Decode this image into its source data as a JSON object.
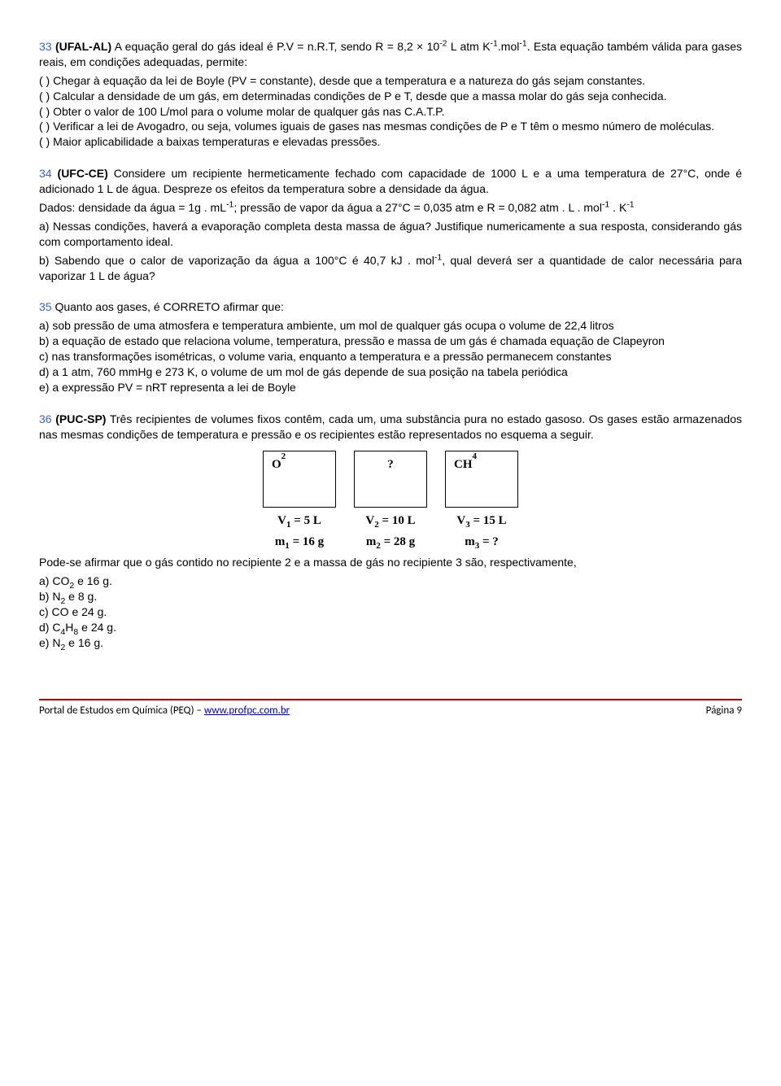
{
  "q33": {
    "num": "33",
    "source": "(UFAL-AL)",
    "stem": "A equação geral do gás ideal é P.V = n.R.T, sendo R = 8,2 × 10⁻² L atm K⁻¹.mol⁻¹. Esta equação também válida para gases reais, em condições adequadas, permite:",
    "opts": [
      "(      ) Chegar à equação da lei de Boyle (PV = constante), desde que a temperatura e a natureza do gás sejam constantes.",
      "(      ) Calcular a densidade de um gás, em determinadas condições de P e T, desde que a massa molar do gás seja conhecida.",
      "(      ) Obter o valor de 100 L/mol para o volume molar de qualquer gás nas C.A.T.P.",
      "(      ) Verificar a lei de Avogadro, ou seja, volumes iguais de gases nas mesmas condições de P e T têm o mesmo número de moléculas.",
      "(      ) Maior aplicabilidade a baixas temperaturas e elevadas pressões."
    ]
  },
  "q34": {
    "num": "34",
    "source": "(UFC-CE)",
    "p1": "Considere um recipiente hermeticamente fechado com capacidade de 1000 L e a uma temperatura de 27°C, onde é adicionado 1 L de água. Despreze os efeitos da temperatura sobre a densidade da água.",
    "p2": "Dados: densidade da água = 1g . mL⁻¹; pressão de vapor da água a 27°C = 0,035 atm e R = 0,082 atm . L . mol⁻¹ . K⁻¹",
    "a": "a) Nessas condições, haverá a evaporação completa desta massa de água? Justifique numericamente a sua resposta, considerando gás com comportamento ideal.",
    "b": "b) Sabendo que o calor de vaporização da água a 100°C é 40,7 kJ . mol⁻¹, qual deverá ser a quantidade de calor necessária para vaporizar 1 L de água?"
  },
  "q35": {
    "num": "35",
    "stem": "Quanto aos gases, é CORRETO afirmar que:",
    "opts": [
      "a) sob pressão de uma atmosfera e temperatura ambiente, um mol de qualquer gás ocupa o volume de 22,4 litros",
      "b) a equação de estado que relaciona volume, temperatura, pressão e massa de um gás é chamada equação de Clapeyron",
      "c) nas transformações isométricas, o volume varia, enquanto a temperatura e a pressão permanecem constantes",
      "d) a 1 atm, 760 mmHg e 273 K, o volume de um mol de gás depende de sua posição na tabela periódica",
      "e) a expressão PV = nRT representa a lei de Boyle"
    ]
  },
  "q36": {
    "num": "36",
    "source": "(PUC-SP)",
    "stem": "Três recipientes de volumes fixos contêm, cada um, uma substância pura no estado gasoso. Os gases estão armazenados nas mesmas condições de temperatura e pressão e os recipientes estão representados no esquema a seguir.",
    "diagram": {
      "boxes": [
        "O₂",
        "?",
        "CH₄"
      ],
      "rows": [
        [
          "V₁ = 5 L",
          "V₂ = 10 L",
          "V₃ = 15 L"
        ],
        [
          "m₁ = 16 g",
          "m₂ = 28 g",
          "m₃ = ?"
        ]
      ]
    },
    "after": "Pode-se afirmar que o gás contido no recipiente 2 e a massa de gás no recipiente 3 são, respectivamente,",
    "opts": [
      "a) CO₂ e 16 g.",
      "b) N₂ e 8 g.",
      "c) CO e 24 g.",
      "d) C₄H₈ e 24 g.",
      "e) N₂ e 16 g."
    ]
  },
  "footer": {
    "left_prefix": "Portal de Estudos em Química (PEQ) – ",
    "link": "www.profpc.com.br",
    "right": "Página 9"
  }
}
